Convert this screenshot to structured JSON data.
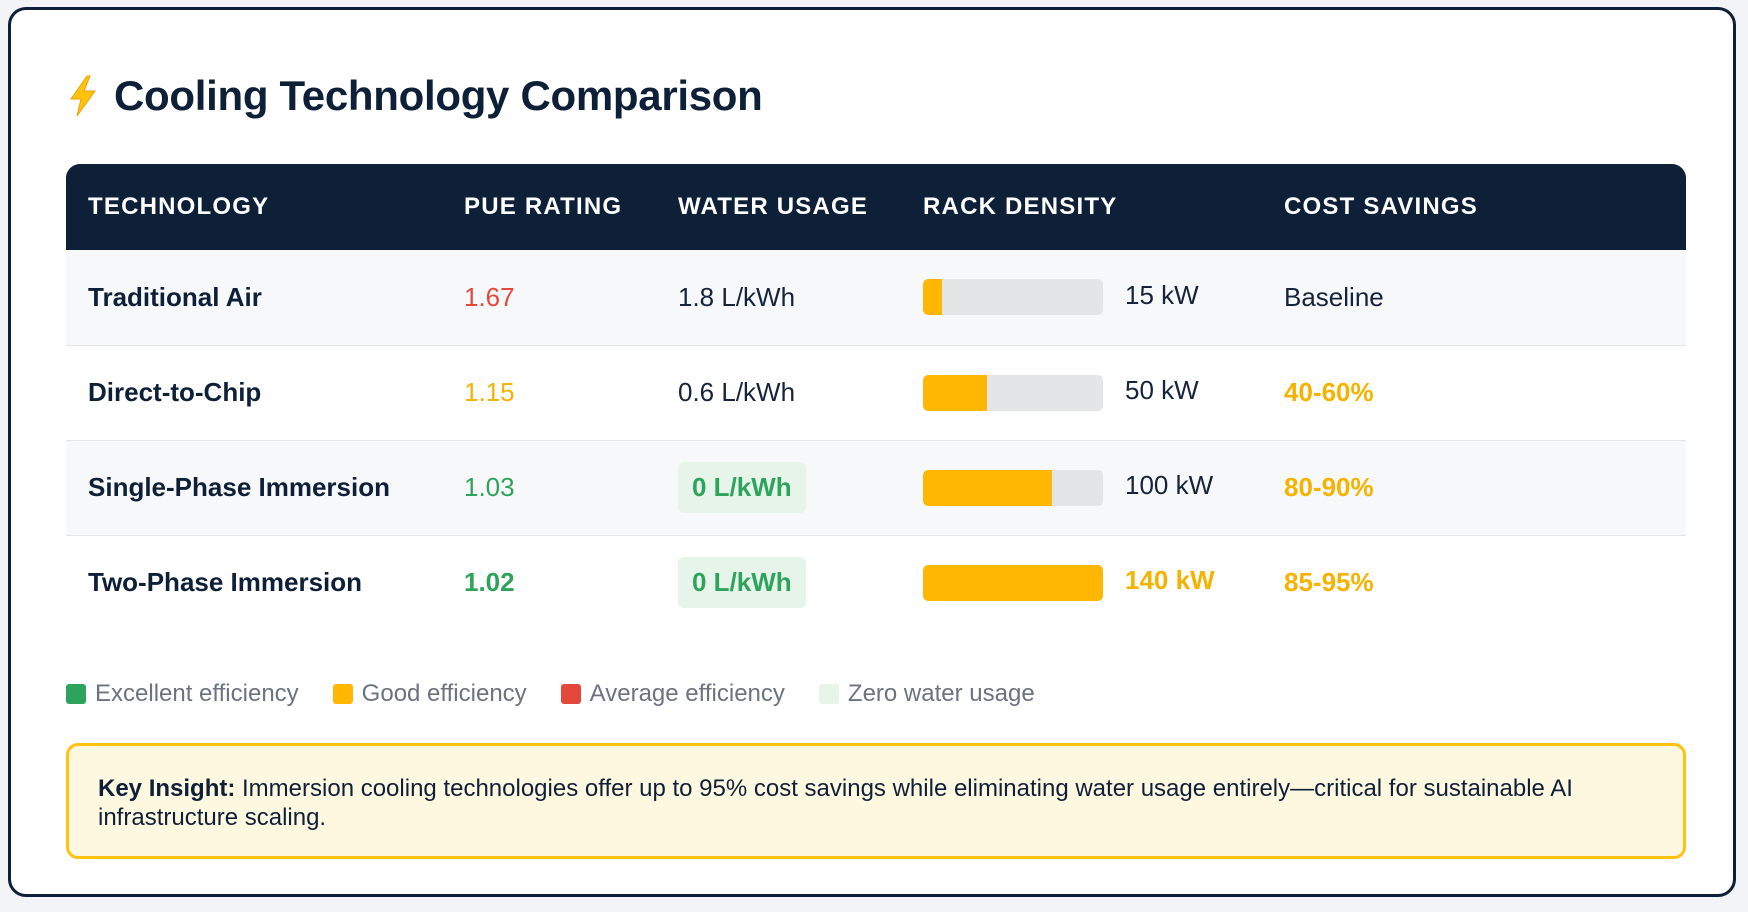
{
  "title": "Cooling Technology Comparison",
  "title_icon": "lightning-bolt-icon",
  "colors": {
    "header_bg": "#0e2038",
    "accent_amber": "#ffb703",
    "excellent": "#2ea35c",
    "good": "#ffb703",
    "average": "#e2493b",
    "zero_water": "#e6f4ea"
  },
  "table": {
    "headers": [
      "TECHNOLOGY",
      "PUE RATING",
      "WATER USAGE",
      "RACK DENSITY",
      "COST SAVINGS"
    ],
    "rows": [
      {
        "technology": "Traditional Air",
        "pue": "1.67",
        "pue_level": "average",
        "water": "1.8 L/kWh",
        "water_zero": false,
        "density": "15 kW",
        "density_fraction": 0.107,
        "savings": "Baseline",
        "savings_highlight": false
      },
      {
        "technology": "Direct-to-Chip",
        "pue": "1.15",
        "pue_level": "good",
        "water": "0.6 L/kWh",
        "water_zero": false,
        "density": "50 kW",
        "density_fraction": 0.357,
        "savings": "40-60%",
        "savings_highlight": true
      },
      {
        "technology": "Single-Phase Immersion",
        "pue": "1.03",
        "pue_level": "excellent",
        "water": "0 L/kWh",
        "water_zero": true,
        "density": "100 kW",
        "density_fraction": 0.714,
        "savings": "80-90%",
        "savings_highlight": true
      },
      {
        "technology": "Two-Phase Immersion",
        "pue": "1.02",
        "pue_level": "excellent",
        "water": "0 L/kWh",
        "water_zero": true,
        "density": "140 kW",
        "density_fraction": 1.0,
        "savings": "85-95%",
        "savings_highlight": true
      }
    ]
  },
  "legend": [
    {
      "label": "Excellent efficiency",
      "color": "#2ea35c"
    },
    {
      "label": "Good efficiency",
      "color": "#ffb703"
    },
    {
      "label": "Average efficiency",
      "color": "#e2493b"
    },
    {
      "label": "Zero water usage",
      "color": "#e6f4ea"
    }
  ],
  "insight": {
    "label": "Key Insight:",
    "text": "Immersion cooling technologies offer up to 95% cost savings while eliminating water usage entirely—critical for sustainable AI infrastructure scaling."
  }
}
